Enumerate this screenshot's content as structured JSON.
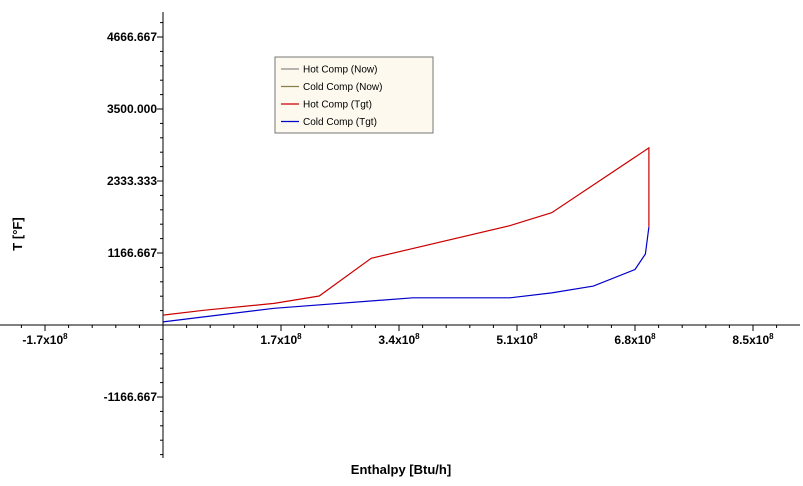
{
  "chart_data": {
    "type": "line",
    "title": "",
    "xlabel": "Enthalpy [Btu/h]",
    "ylabel": "T  [°F]",
    "xlim": [
      -170000000,
      950000000
    ],
    "ylim": [
      -2000000,
      5000000
    ],
    "x_ticks": [
      {
        "value": -170000000,
        "mantissa": "-1.7",
        "base": "x10",
        "exp": "8"
      },
      {
        "value": 170000000,
        "mantissa": "1.7",
        "base": "x10",
        "exp": "8"
      },
      {
        "value": 340000000,
        "mantissa": "3.4",
        "base": "x10",
        "exp": "8"
      },
      {
        "value": 510000000,
        "mantissa": "5.1",
        "base": "x10",
        "exp": "8"
      },
      {
        "value": 680000000,
        "mantissa": "6.8",
        "base": "x10",
        "exp": "8"
      },
      {
        "value": 850000000,
        "mantissa": "8.5",
        "base": "x10",
        "exp": "8"
      }
    ],
    "y_ticks": [
      {
        "value": -1166.667,
        "label": "-1166.667"
      },
      {
        "value": 1166.667,
        "label": "1166.667"
      },
      {
        "value": 2333.333,
        "label": "2333.333"
      },
      {
        "value": 3500,
        "label": "3500.000"
      },
      {
        "value": 4666.667,
        "label": "4666.667"
      }
    ],
    "grid": false,
    "legend_position": "top-center",
    "series": [
      {
        "name": "Hot Comp (Now)",
        "color": "#8a8a8a",
        "points": []
      },
      {
        "name": "Cold Comp (Now)",
        "color": "#8a7f4a",
        "points": []
      },
      {
        "name": "Hot Comp (Tgt)",
        "color": "#cc0000",
        "points": [
          [
            0,
            160
          ],
          [
            60000000,
            240
          ],
          [
            160000000,
            350
          ],
          [
            225000000,
            470
          ],
          [
            300000000,
            1080
          ],
          [
            500000000,
            1610
          ],
          [
            560000000,
            1820
          ],
          [
            700000000,
            2870
          ],
          [
            700000000,
            1590
          ]
        ]
      },
      {
        "name": "Cold Comp (Tgt)",
        "color": "#0000cc",
        "points": [
          [
            0,
            50
          ],
          [
            160000000,
            270
          ],
          [
            360000000,
            440
          ],
          [
            500000000,
            440
          ],
          [
            560000000,
            520
          ],
          [
            620000000,
            630
          ],
          [
            680000000,
            900
          ],
          [
            695000000,
            1150
          ],
          [
            700000000,
            1590
          ]
        ]
      }
    ]
  }
}
